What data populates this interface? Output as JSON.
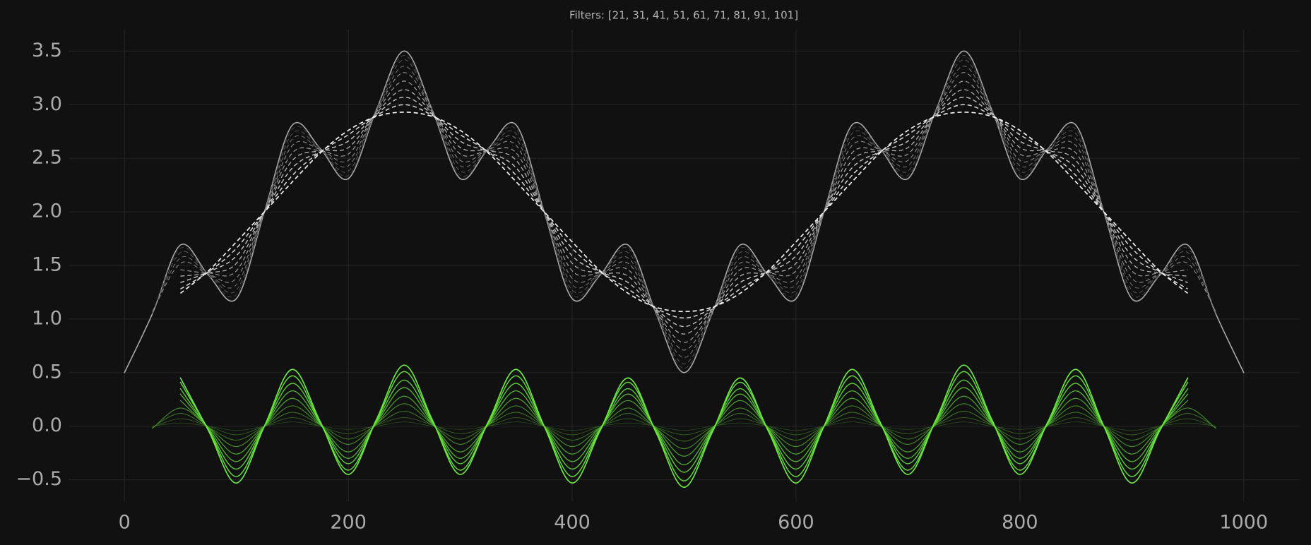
{
  "chart_data": {
    "type": "line",
    "title": "Filters: [21, 31, 41, 51, 61, 71, 81, 91, 101]",
    "grid": true,
    "xlim": [
      -50,
      1050
    ],
    "ylim": [
      -0.7,
      3.7
    ],
    "xticks": [
      0,
      200,
      400,
      600,
      800,
      1000
    ],
    "yticks": [
      {
        "value": -0.5,
        "label": "−0.5"
      },
      {
        "value": 0,
        "label": "0.0"
      },
      0.5,
      {
        "value": 1,
        "label": "1.0"
      },
      1.5,
      {
        "value": 2,
        "label": "2.0"
      },
      2.5,
      {
        "value": 3,
        "label": "3.0"
      },
      3.5
    ],
    "x": [
      0,
      25,
      50,
      75,
      100,
      125,
      150,
      175,
      200,
      225,
      250,
      275,
      300,
      325,
      350,
      375,
      400,
      425,
      450,
      475,
      500,
      525,
      550,
      575,
      600,
      625,
      650,
      675,
      700,
      725,
      750,
      775,
      800,
      825,
      850,
      875,
      900,
      925,
      950,
      975,
      1000
    ],
    "series": [
      {
        "color": "#a8a8a8",
        "line_style": "solid",
        "width": 1.6,
        "values": [
          0.5,
          1.05,
          1.69,
          1.41,
          1.19,
          2,
          2.81,
          2.59,
          2.31,
          2.95,
          3.5,
          2.95,
          2.31,
          2.59,
          2.81,
          2,
          1.19,
          1.41,
          1.69,
          1.05,
          0.5,
          1.05,
          1.69,
          1.41,
          1.19,
          2,
          2.81,
          2.59,
          2.31,
          2.95,
          3.5,
          2.95,
          2.31,
          2.59,
          2.81,
          2,
          1.19,
          1.41,
          1.69,
          1.05,
          0.5
        ]
      },
      {
        "color": "#4a4a4a",
        "line_style": "dashed",
        "width": 0.8,
        "values": [
          null,
          1.05,
          1.66,
          1.41,
          1.23,
          2,
          2.77,
          2.59,
          2.34,
          2.95,
          3.46,
          2.95,
          2.34,
          2.59,
          2.77,
          2,
          1.23,
          1.41,
          1.66,
          1.05,
          0.54,
          1.05,
          1.66,
          1.41,
          1.23,
          2,
          2.77,
          2.59,
          2.34,
          2.95,
          3.46,
          2.95,
          2.34,
          2.59,
          2.77,
          2,
          1.23,
          1.41,
          1.66,
          1.05,
          null
        ]
      },
      {
        "color": "#5e5e5e",
        "line_style": "dashed",
        "width": 0.9,
        "values": [
          null,
          1.06,
          1.62,
          1.42,
          1.27,
          2,
          2.73,
          2.58,
          2.38,
          2.95,
          3.42,
          2.95,
          2.38,
          2.58,
          2.73,
          2,
          1.27,
          1.42,
          1.62,
          1.06,
          0.58,
          1.06,
          1.62,
          1.42,
          1.27,
          2,
          2.73,
          2.58,
          2.38,
          2.95,
          3.42,
          2.95,
          2.38,
          2.58,
          2.73,
          2,
          1.27,
          1.42,
          1.62,
          1.06,
          null
        ]
      },
      {
        "color": "#727272",
        "line_style": "dashed",
        "width": 1.0,
        "values": [
          null,
          1.06,
          1.57,
          1.42,
          1.32,
          2,
          2.68,
          2.58,
          2.43,
          2.94,
          3.36,
          2.94,
          2.43,
          2.58,
          2.68,
          2,
          1.32,
          1.42,
          1.57,
          1.06,
          0.64,
          1.06,
          1.57,
          1.42,
          1.32,
          2,
          2.68,
          2.58,
          2.43,
          2.94,
          3.36,
          2.94,
          2.43,
          2.58,
          2.68,
          2,
          1.32,
          1.42,
          1.57,
          1.06,
          null
        ]
      },
      {
        "color": "#878787",
        "line_style": "dashed",
        "width": 1.1,
        "values": [
          null,
          1.07,
          1.52,
          1.42,
          1.38,
          2,
          2.62,
          2.58,
          2.48,
          2.94,
          3.3,
          2.94,
          2.48,
          2.58,
          2.62,
          2,
          1.38,
          1.42,
          1.52,
          1.07,
          0.71,
          1.07,
          1.52,
          1.42,
          1.38,
          2,
          2.62,
          2.58,
          2.48,
          2.94,
          3.3,
          2.94,
          2.48,
          2.58,
          2.62,
          2,
          1.38,
          1.42,
          1.52,
          1.07,
          null
        ]
      },
      {
        "color": "#9b9b9b",
        "line_style": "dashed",
        "width": 1.2,
        "values": [
          null,
          null,
          1.46,
          1.43,
          1.45,
          2,
          2.55,
          2.57,
          2.54,
          2.93,
          3.22,
          2.93,
          2.54,
          2.57,
          2.55,
          2,
          1.45,
          1.43,
          1.46,
          1.07,
          0.78,
          1.07,
          1.46,
          1.43,
          1.45,
          2,
          2.55,
          2.57,
          2.54,
          2.93,
          3.22,
          2.93,
          2.54,
          2.57,
          2.55,
          2,
          1.45,
          1.43,
          1.46,
          null,
          null
        ]
      },
      {
        "color": "#b0b0b0",
        "line_style": "dashed",
        "width": 1.3,
        "values": [
          null,
          null,
          1.4,
          1.43,
          1.52,
          2,
          2.48,
          2.57,
          2.6,
          2.92,
          3.14,
          2.92,
          2.6,
          2.57,
          2.48,
          2,
          1.52,
          1.43,
          1.4,
          1.08,
          0.86,
          1.08,
          1.4,
          1.43,
          1.52,
          2,
          2.48,
          2.57,
          2.6,
          2.92,
          3.14,
          2.92,
          2.6,
          2.57,
          2.48,
          2,
          1.52,
          1.43,
          1.4,
          null,
          null
        ]
      },
      {
        "color": "#c5c5c5",
        "line_style": "dashed",
        "width": 1.4,
        "values": [
          null,
          null,
          1.34,
          1.44,
          1.59,
          2,
          2.41,
          2.56,
          2.66,
          2.91,
          3.07,
          2.91,
          2.66,
          2.56,
          2.41,
          2,
          1.59,
          1.44,
          1.34,
          1.09,
          0.93,
          1.09,
          1.34,
          1.44,
          1.59,
          2,
          2.41,
          2.56,
          2.66,
          2.91,
          3.07,
          2.91,
          2.66,
          2.56,
          2.41,
          2,
          1.59,
          1.44,
          1.34,
          null,
          null
        ]
      },
      {
        "color": "#dadada",
        "line_style": "dashed",
        "width": 1.5,
        "values": [
          null,
          null,
          1.28,
          1.44,
          1.66,
          2,
          2.34,
          2.56,
          2.72,
          2.9,
          3,
          2.9,
          2.72,
          2.56,
          2.34,
          2,
          1.66,
          1.44,
          1.28,
          1.1,
          1.01,
          1.1,
          1.28,
          1.44,
          1.66,
          2,
          2.34,
          2.56,
          2.72,
          2.9,
          3,
          2.9,
          2.72,
          2.56,
          2.34,
          2,
          1.66,
          1.44,
          1.28,
          null,
          null
        ]
      },
      {
        "color": "#f2f2f2",
        "line_style": "dashed",
        "width": 1.7,
        "values": [
          null,
          null,
          1.24,
          1.45,
          1.72,
          2,
          2.28,
          2.55,
          2.76,
          2.89,
          2.93,
          2.89,
          2.76,
          2.55,
          2.28,
          2,
          1.72,
          1.45,
          1.24,
          1.11,
          1.07,
          1.11,
          1.24,
          1.45,
          1.72,
          2,
          2.28,
          2.55,
          2.76,
          2.89,
          2.93,
          2.89,
          2.76,
          2.55,
          2.28,
          2,
          1.72,
          1.45,
          1.24,
          null,
          null
        ]
      },
      {
        "color": "#2b4a1f",
        "line_style": "solid",
        "width": 0.8,
        "values": [
          null,
          0,
          0.03,
          0,
          -0.04,
          0,
          0.04,
          0,
          -0.03,
          0,
          0.04,
          0,
          -0.03,
          0,
          0.04,
          0,
          -0.04,
          0,
          0.03,
          0,
          -0.04,
          0,
          0.03,
          0,
          -0.04,
          0,
          0.04,
          0,
          -0.03,
          0,
          0.04,
          0,
          -0.03,
          0,
          0.04,
          0,
          -0.04,
          0,
          0.03,
          0,
          null
        ]
      },
      {
        "color": "#33601f",
        "line_style": "solid",
        "width": 0.9,
        "values": [
          null,
          -0.01,
          0.07,
          0,
          -0.08,
          0,
          0.08,
          0,
          -0.07,
          0.01,
          0.08,
          0.01,
          -0.07,
          0,
          0.08,
          0,
          -0.08,
          0,
          0.07,
          -0.01,
          -0.08,
          -0.01,
          0.07,
          0,
          -0.08,
          0,
          0.08,
          0,
          -0.07,
          0.01,
          0.08,
          0.01,
          -0.07,
          0,
          0.08,
          0,
          -0.08,
          0,
          0.07,
          -0.01,
          null
        ]
      },
      {
        "color": "#3b7622",
        "line_style": "solid",
        "width": 1.0,
        "values": [
          null,
          -0.01,
          0.12,
          -0.01,
          -0.13,
          0,
          0.13,
          0.01,
          -0.12,
          0.01,
          0.14,
          0.01,
          -0.12,
          0.01,
          0.13,
          0,
          -0.13,
          -0.01,
          0.12,
          -0.01,
          -0.14,
          -0.01,
          0.12,
          -0.01,
          -0.13,
          0,
          0.13,
          0.01,
          -0.12,
          0.01,
          0.14,
          0.01,
          -0.12,
          0.01,
          0.13,
          0,
          -0.13,
          -0.01,
          0.12,
          -0.01,
          null
        ]
      },
      {
        "color": "#438c27",
        "line_style": "solid",
        "width": 1.1,
        "values": [
          null,
          -0.02,
          0.17,
          -0.01,
          -0.19,
          0,
          0.19,
          0.01,
          -0.17,
          0.02,
          0.21,
          0.02,
          -0.17,
          0.01,
          0.19,
          0,
          -0.19,
          -0.01,
          0.17,
          -0.02,
          -0.21,
          -0.02,
          0.17,
          -0.01,
          -0.19,
          0,
          0.19,
          0.01,
          -0.17,
          0.02,
          0.21,
          0.02,
          -0.17,
          0.01,
          0.19,
          0,
          -0.19,
          -0.01,
          0.17,
          -0.02,
          null
        ]
      },
      {
        "color": "#4ba22c",
        "line_style": "solid",
        "width": 1.2,
        "values": [
          null,
          null,
          0.24,
          -0.01,
          -0.26,
          0,
          0.26,
          0.01,
          -0.24,
          0.02,
          0.28,
          0.02,
          -0.24,
          0.01,
          0.26,
          0,
          -0.26,
          -0.01,
          0.24,
          -0.02,
          -0.28,
          -0.02,
          0.24,
          -0.01,
          -0.26,
          0,
          0.26,
          0.01,
          -0.24,
          0.02,
          0.28,
          0.02,
          -0.24,
          0.01,
          0.26,
          0,
          -0.26,
          -0.01,
          0.24,
          null,
          null
        ]
      },
      {
        "color": "#53b631",
        "line_style": "solid",
        "width": 1.3,
        "values": [
          null,
          null,
          0.3,
          -0.02,
          -0.33,
          0,
          0.33,
          0.02,
          -0.3,
          0.03,
          0.36,
          0.03,
          -0.3,
          0.02,
          0.33,
          0,
          -0.33,
          -0.02,
          0.3,
          -0.03,
          -0.36,
          -0.03,
          0.3,
          -0.02,
          -0.33,
          0,
          0.33,
          0.02,
          -0.3,
          0.03,
          0.36,
          0.03,
          -0.3,
          0.02,
          0.33,
          0,
          -0.33,
          -0.02,
          0.3,
          null,
          null
        ]
      },
      {
        "color": "#5bc836",
        "line_style": "solid",
        "width": 1.4,
        "values": [
          null,
          null,
          0.35,
          -0.03,
          -0.4,
          0,
          0.4,
          0.03,
          -0.35,
          0.04,
          0.43,
          0.04,
          -0.35,
          0.03,
          0.4,
          0,
          -0.4,
          -0.03,
          0.35,
          -0.04,
          -0.43,
          -0.04,
          0.35,
          -0.03,
          -0.4,
          0,
          0.4,
          0.03,
          -0.35,
          0.04,
          0.43,
          0.04,
          -0.35,
          0.03,
          0.4,
          0,
          -0.4,
          -0.03,
          0.35,
          null,
          null
        ]
      },
      {
        "color": "#62d83b",
        "line_style": "solid",
        "width": 1.5,
        "values": [
          null,
          null,
          0.41,
          -0.03,
          -0.47,
          0,
          0.47,
          0.03,
          -0.41,
          0.05,
          0.51,
          0.05,
          -0.41,
          0.03,
          0.47,
          0,
          -0.47,
          -0.03,
          0.41,
          -0.05,
          -0.51,
          -0.05,
          0.41,
          -0.03,
          -0.47,
          0,
          0.47,
          0.03,
          -0.41,
          0.05,
          0.51,
          0.05,
          -0.41,
          0.03,
          0.47,
          0,
          -0.47,
          -0.03,
          0.41,
          null,
          null
        ]
      },
      {
        "color": "#6ae840",
        "line_style": "solid",
        "width": 1.7,
        "values": [
          null,
          null,
          0.45,
          -0.04,
          -0.53,
          0,
          0.53,
          0.04,
          -0.45,
          0.06,
          0.57,
          0.06,
          -0.45,
          0.04,
          0.53,
          0,
          -0.53,
          -0.04,
          0.45,
          -0.06,
          -0.57,
          -0.06,
          0.45,
          -0.04,
          -0.53,
          0,
          0.53,
          0.04,
          -0.45,
          0.06,
          0.57,
          0.06,
          -0.45,
          0.04,
          0.53,
          0,
          -0.53,
          -0.04,
          0.45,
          null,
          null
        ]
      }
    ]
  }
}
